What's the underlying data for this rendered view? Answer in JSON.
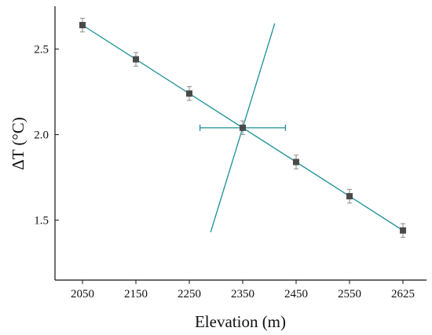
{
  "chart_data": {
    "type": "scatter",
    "xlabel": "Elevation (m)",
    "ylabel": "ΔT (°C)",
    "x_categories": [
      "2050",
      "2150",
      "2250",
      "2350",
      "2450",
      "2550",
      "2625"
    ],
    "ylim": [
      1.15,
      2.75
    ],
    "y_ticks": [
      1.5,
      2.0,
      2.5
    ],
    "y_tick_labels": [
      "1.5",
      "2.0",
      "2.5"
    ],
    "grid": false,
    "legend": "none",
    "series": [
      {
        "points": [
          {
            "x": "2050",
            "y": 2.64,
            "err": 0.04
          },
          {
            "x": "2150",
            "y": 2.44,
            "err": 0.04
          },
          {
            "x": "2250",
            "y": 2.24,
            "err": 0.04
          },
          {
            "x": "2350",
            "y": 2.04,
            "err": 0.04
          },
          {
            "x": "2450",
            "y": 1.84,
            "err": 0.04
          },
          {
            "x": "2550",
            "y": 1.64,
            "err": 0.04
          },
          {
            "x": "2625",
            "y": 1.44,
            "err": 0.04
          }
        ]
      }
    ],
    "fit_line": {
      "from": {
        "x": "2050",
        "y": 2.64
      },
      "to": {
        "x": "2625",
        "y": 1.44
      }
    },
    "crossing_line": {
      "from": {
        "x": 2290,
        "y": 1.43
      },
      "to": {
        "x": 2410,
        "y": 2.65
      }
    },
    "horizontal_error_bar": {
      "center_x": 2350,
      "y": 2.04,
      "x_from": 2270,
      "x_to": 2430
    },
    "colors": {
      "fit": "#1a8f97",
      "marker": "#4a4a4a",
      "error_bar": "#8a8a8a",
      "axis": "#111111"
    }
  }
}
